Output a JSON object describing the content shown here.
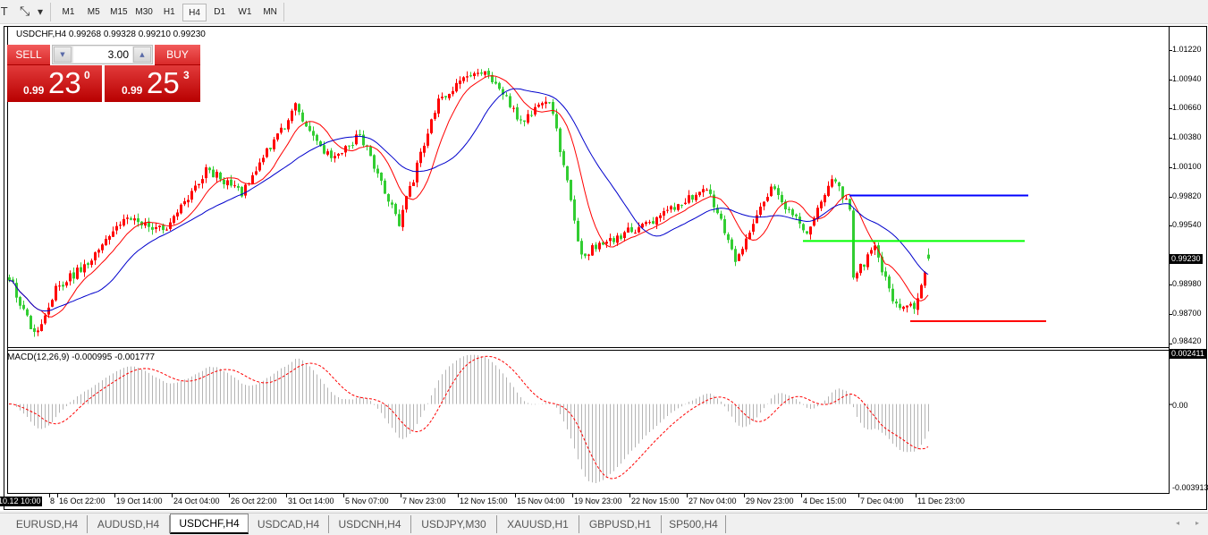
{
  "toolbar": {
    "icons": [
      "text-tool-icon",
      "arrows-tool-icon",
      "dropdown-icon"
    ],
    "text_icon_glyph": "T",
    "arrows_icon_glyph": "⤡",
    "dropdown_glyph": "▾",
    "timeframes": [
      "M1",
      "M5",
      "M15",
      "M30",
      "H1",
      "H4",
      "D1",
      "W1",
      "MN"
    ],
    "active_timeframe": "H4"
  },
  "chart_header": {
    "text": "USDCHF,H4  0.99268 0.99328 0.99210 0.99230",
    "symbol": "USDCHF",
    "timeframe": "H4",
    "open": 0.99268,
    "high": 0.99328,
    "low": 0.9921,
    "close": 0.9923
  },
  "trade_panel": {
    "sell_label": "SELL",
    "buy_label": "BUY",
    "volume": "3.00",
    "down_glyph": "▼",
    "up_glyph": "▲",
    "sell_price": {
      "prefix": "0.99",
      "big": "23",
      "sup": "0"
    },
    "buy_price": {
      "prefix": "0.99",
      "big": "25",
      "sup": "3"
    }
  },
  "price_axis": {
    "labels": [
      "1.01220",
      "1.00940",
      "1.00660",
      "1.00380",
      "1.00100",
      "0.99820",
      "0.99540",
      "0.98980",
      "0.98700",
      "0.98420"
    ],
    "current_price": "0.99230"
  },
  "macd": {
    "label": "MACD(12,26,9) -0.000995 -0.001777",
    "axis_labels": {
      "top": "0.002411",
      "zero": "0.00",
      "bottom": "-0.003913"
    }
  },
  "time_axis": {
    "cursor_label": "10.12 10:00",
    "labels": [
      "8",
      "16 Oct 22:00",
      "19 Oct 14:00",
      "24 Oct 04:00",
      "26 Oct 22:00",
      "31 Oct 14:00",
      "5 Nov 07:00",
      "7 Nov 23:00",
      "12 Nov 15:00",
      "15 Nov 04:00",
      "19 Nov 23:00",
      "22 Nov 15:00",
      "27 Nov 04:00",
      "29 Nov 23:00",
      "4 Dec 15:00",
      "7 Dec 04:00",
      "11 Dec 23:00"
    ]
  },
  "tabs": {
    "items": [
      "EURUSD,H4",
      "AUDUSD,H4",
      "USDCHF,H4",
      "USDCAD,H4",
      "USDCNH,H4",
      "USDJPY,M30",
      "XAUUSD,H1",
      "GBPUSD,H1",
      "SP500,H4"
    ],
    "active": "USDCHF,H4",
    "scroll_left_glyph": "◂",
    "scroll_right_glyph": "▸"
  },
  "chart_data": {
    "type": "candlestick",
    "price_range": [
      0.9842,
      1.0122
    ],
    "price_path_approx": [
      [
        0,
        0.99058
      ],
      [
        7,
        0.98505
      ],
      [
        13,
        0.98931
      ],
      [
        23,
        0.99229
      ],
      [
        33,
        0.99654
      ],
      [
        43,
        0.99484
      ],
      [
        55,
        1.0008
      ],
      [
        65,
        0.99867
      ],
      [
        80,
        1.00675
      ],
      [
        90,
        1.00165
      ],
      [
        98,
        1.0042
      ],
      [
        109,
        0.99569
      ],
      [
        120,
        1.0076
      ],
      [
        133,
        1.01058
      ],
      [
        143,
        1.00548
      ],
      [
        151,
        1.0076
      ],
      [
        160,
        0.99271
      ],
      [
        173,
        0.99484
      ],
      [
        183,
        0.99654
      ],
      [
        195,
        0.99909
      ],
      [
        203,
        0.99229
      ],
      [
        213,
        0.99909
      ],
      [
        223,
        0.99484
      ],
      [
        230,
        0.99995
      ],
      [
        235,
        0.99739
      ],
      [
        236,
        0.99058
      ],
      [
        242,
        0.99314
      ],
      [
        248,
        0.98761
      ],
      [
        253,
        0.98761
      ],
      [
        257,
        0.9923
      ]
    ],
    "moving_averages": [
      {
        "color": "#ff0000"
      },
      {
        "color": "#0000cc"
      }
    ],
    "horizontal_levels": [
      {
        "price": 0.99833,
        "color": "#0000ff",
        "from_bar": 235,
        "to_bar": 285
      },
      {
        "price": 0.99399,
        "color": "#00ff00",
        "from_bar": 222,
        "to_bar": 284
      },
      {
        "price": 0.98633,
        "color": "#ff0000",
        "from_bar": 252,
        "to_bar": 290
      }
    ],
    "macd_range": [
      -0.003913,
      0.002411
    ],
    "colors": {
      "bull": "#ff0000",
      "bear": "#32cd32",
      "macd_hist": "#b4b4b4",
      "macd_signal": "#ff0000"
    }
  }
}
